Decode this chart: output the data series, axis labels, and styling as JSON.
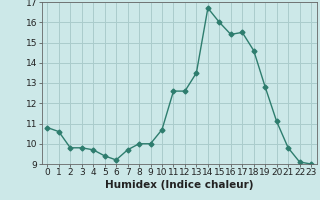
{
  "x": [
    0,
    1,
    2,
    3,
    4,
    5,
    6,
    7,
    8,
    9,
    10,
    11,
    12,
    13,
    14,
    15,
    16,
    17,
    18,
    19,
    20,
    21,
    22,
    23
  ],
  "y": [
    10.8,
    10.6,
    9.8,
    9.8,
    9.7,
    9.4,
    9.2,
    9.7,
    10.0,
    10.0,
    10.7,
    12.6,
    12.6,
    13.5,
    16.7,
    16.0,
    15.4,
    15.5,
    14.6,
    12.8,
    11.1,
    9.8,
    9.1,
    9.0
  ],
  "xlabel": "Humidex (Indice chaleur)",
  "ylim": [
    9,
    17
  ],
  "xlim": [
    -0.5,
    23.5
  ],
  "yticks": [
    9,
    10,
    11,
    12,
    13,
    14,
    15,
    16,
    17
  ],
  "xticks": [
    0,
    1,
    2,
    3,
    4,
    5,
    6,
    7,
    8,
    9,
    10,
    11,
    12,
    13,
    14,
    15,
    16,
    17,
    18,
    19,
    20,
    21,
    22,
    23
  ],
  "line_color": "#2e7d6e",
  "marker": "D",
  "marker_size": 2.5,
  "bg_color": "#cce8e8",
  "grid_color": "#aacccc",
  "xlabel_fontsize": 7.5,
  "tick_fontsize": 6.5,
  "line_width": 1.0
}
